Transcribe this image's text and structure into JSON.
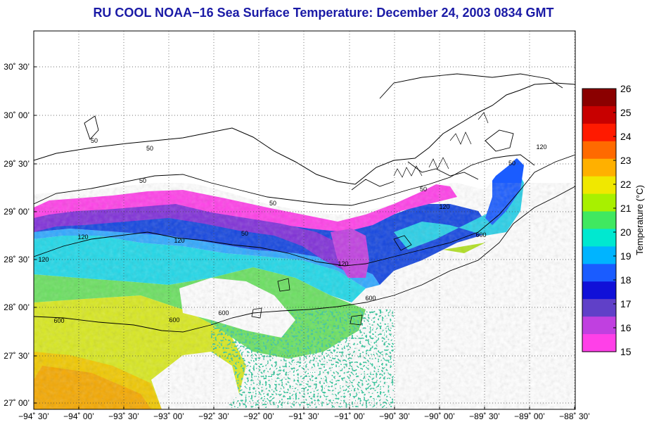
{
  "title": "RU COOL  NOAA−16  Sea Surface Temperature:  December 24, 2003 0834 GMT",
  "map": {
    "lat_labels": [
      "30˚ 30’",
      "30˚ 00’",
      "29˚ 30’",
      "29˚ 00’",
      "28˚ 30’",
      "28˚ 00’",
      "27˚ 30’",
      "27˚ 00’"
    ],
    "lon_labels": [
      "−94˚ 30’",
      "−94˚ 00’",
      "−93˚ 30’",
      "−93˚ 00’",
      "−92˚ 30’",
      "−92˚ 00’",
      "−91˚ 30’",
      "−91˚ 00’",
      "−90˚ 30’",
      "−90˚ 00’",
      "−89˚ 30’",
      "−89˚ 00’",
      "−88˚ 30’"
    ],
    "contour_labels": [
      "50",
      "50",
      "50",
      "50",
      "50",
      "50",
      "50",
      "120",
      "120",
      "120",
      "120",
      "120",
      "120",
      "600",
      "600",
      "600",
      "600",
      "600"
    ]
  },
  "colorbar": {
    "title": "Temperature (°C)",
    "ticks": [
      "26",
      "25",
      "24",
      "23",
      "22",
      "21",
      "20",
      "19",
      "18",
      "17",
      "16",
      "15"
    ],
    "colors": [
      "#8b0000",
      "#c80000",
      "#ff1a00",
      "#ff6a00",
      "#ffb000",
      "#f0e800",
      "#a8f000",
      "#40e860",
      "#00e8d0",
      "#00b4ff",
      "#1a5cff",
      "#1010d8",
      "#6040c8",
      "#c040e0",
      "#ff40e8"
    ]
  }
}
